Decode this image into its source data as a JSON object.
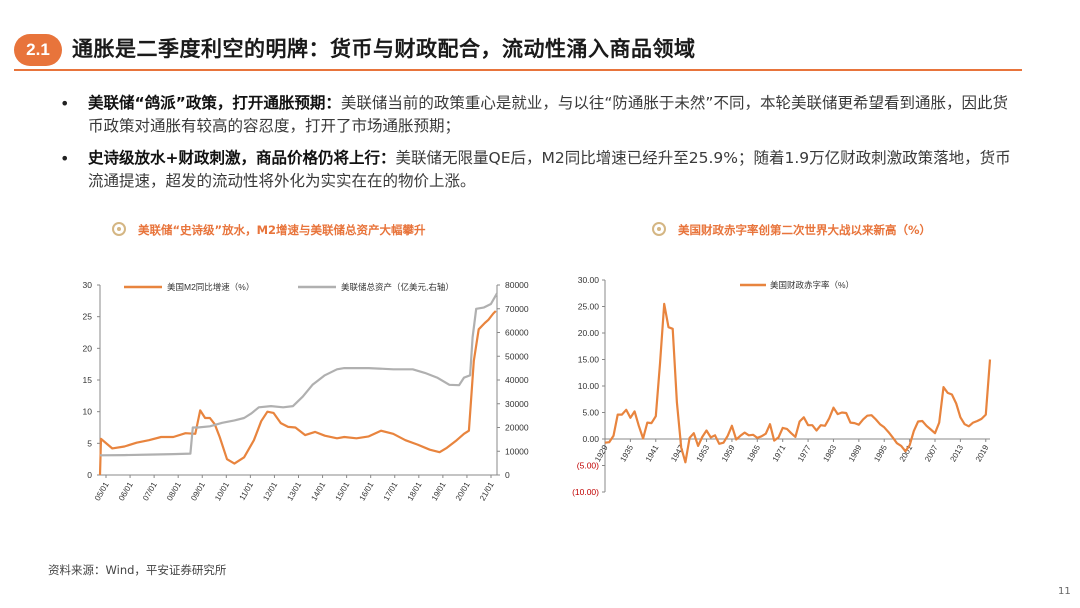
{
  "slide": {
    "section_number": "2.1",
    "title": "通胀是二季度利空的明牌：货币与财政配合，流动性涌入商品领域",
    "bullets": [
      {
        "lead": "美联储“鸽派”政策，打开通胀预期：",
        "text": "美联储当前的政策重心是就业，与以往“防通胀于未然”不同，本轮美联储更希望看到通胀，因此货币政策对通胀有较高的容忍度，打开了市场通胀预期；"
      },
      {
        "lead": "史诗级放水+财政刺激，商品价格仍将上行：",
        "text": "美联储无限量QE后，M2同比增速已经升至25.9%；随着1.9万亿财政刺激政策落地，货币流通提速，超发的流动性将外化为实实在在的物价上涨。"
      }
    ],
    "source": "资料来源：Wind，平安证券研究所",
    "page_number": "11"
  },
  "colors": {
    "accent": "#E8743B",
    "series_orange": "#E8843E",
    "series_gray": "#B0B0B0",
    "ring": "#D4B683"
  },
  "chart_data": [
    {
      "type": "line",
      "title": "美联储“史诗级”放水，M2增速与美联储总资产大幅攀升",
      "x_ticks": [
        "05/01",
        "06/01",
        "07/01",
        "08/01",
        "09/01",
        "10/01",
        "11/01",
        "12/01",
        "13/01",
        "14/01",
        "15/01",
        "16/01",
        "17/01",
        "18/01",
        "19/01",
        "20/01",
        "21/01"
      ],
      "x_range": [
        2005.0,
        2021.25
      ],
      "y_left": {
        "min": 0,
        "max": 30,
        "ticks": [
          "0",
          "5",
          "10",
          "15",
          "20",
          "25",
          "30"
        ]
      },
      "y_right": {
        "min": 0,
        "max": 80000,
        "ticks": [
          "0",
          "10000",
          "20000",
          "30000",
          "40000",
          "50000",
          "60000",
          "70000",
          "80000"
        ]
      },
      "legend_position": "top",
      "series": [
        {
          "name": "美国M2同比增速（%）",
          "axis": "left",
          "points": [
            [
              2005.0,
              0
            ],
            [
              2005.04,
              5.7
            ],
            [
              2005.5,
              4.2
            ],
            [
              2006.0,
              4.5
            ],
            [
              2006.5,
              5.1
            ],
            [
              2007.0,
              5.5
            ],
            [
              2007.5,
              6.0
            ],
            [
              2008.0,
              6.0
            ],
            [
              2008.5,
              6.6
            ],
            [
              2008.9,
              6.5
            ],
            [
              2009.1,
              10.2
            ],
            [
              2009.3,
              9.0
            ],
            [
              2009.5,
              9.0
            ],
            [
              2009.7,
              8.0
            ],
            [
              2009.9,
              6.0
            ],
            [
              2010.2,
              2.5
            ],
            [
              2010.5,
              1.8
            ],
            [
              2010.9,
              2.8
            ],
            [
              2011.3,
              5.5
            ],
            [
              2011.6,
              8.5
            ],
            [
              2011.85,
              10.0
            ],
            [
              2012.1,
              9.8
            ],
            [
              2012.4,
              8.2
            ],
            [
              2012.7,
              7.6
            ],
            [
              2013.0,
              7.5
            ],
            [
              2013.4,
              6.3
            ],
            [
              2013.8,
              6.8
            ],
            [
              2014.2,
              6.2
            ],
            [
              2014.7,
              5.8
            ],
            [
              2015.0,
              6.0
            ],
            [
              2015.5,
              5.8
            ],
            [
              2016.0,
              6.1
            ],
            [
              2016.5,
              7.0
            ],
            [
              2017.0,
              6.5
            ],
            [
              2017.5,
              5.5
            ],
            [
              2018.0,
              4.8
            ],
            [
              2018.5,
              4.0
            ],
            [
              2018.9,
              3.6
            ],
            [
              2019.2,
              4.3
            ],
            [
              2019.6,
              5.5
            ],
            [
              2019.9,
              6.5
            ],
            [
              2020.1,
              7.0
            ],
            [
              2020.3,
              18.0
            ],
            [
              2020.5,
              23.0
            ],
            [
              2020.75,
              24.0
            ],
            [
              2020.9,
              24.5
            ],
            [
              2021.1,
              25.5
            ],
            [
              2021.2,
              25.9
            ]
          ]
        },
        {
          "name": "美联储总资产（亿美元,右轴）",
          "axis": "right",
          "points": [
            [
              2005.0,
              8300
            ],
            [
              2006.0,
              8400
            ],
            [
              2007.0,
              8600
            ],
            [
              2008.0,
              8800
            ],
            [
              2008.7,
              9000
            ],
            [
              2008.8,
              20000
            ],
            [
              2009.0,
              20000
            ],
            [
              2009.5,
              20500
            ],
            [
              2010.0,
              22000
            ],
            [
              2010.5,
              23000
            ],
            [
              2010.9,
              24000
            ],
            [
              2011.2,
              26000
            ],
            [
              2011.5,
              28500
            ],
            [
              2012.0,
              29000
            ],
            [
              2012.5,
              28500
            ],
            [
              2012.9,
              29000
            ],
            [
              2013.3,
              33000
            ],
            [
              2013.7,
              38000
            ],
            [
              2014.2,
              42000
            ],
            [
              2014.7,
              44500
            ],
            [
              2015.0,
              45000
            ],
            [
              2016.0,
              45000
            ],
            [
              2017.0,
              44500
            ],
            [
              2017.8,
              44500
            ],
            [
              2018.3,
              43000
            ],
            [
              2018.8,
              41000
            ],
            [
              2019.3,
              38000
            ],
            [
              2019.7,
              37800
            ],
            [
              2019.9,
              41000
            ],
            [
              2020.15,
              42000
            ],
            [
              2020.25,
              58000
            ],
            [
              2020.4,
              70000
            ],
            [
              2020.7,
              70500
            ],
            [
              2021.0,
              72000
            ],
            [
              2021.25,
              76500
            ]
          ]
        }
      ]
    },
    {
      "type": "line",
      "title": "美国财政赤字率创第二次世界大战以来新高（%）",
      "x_ticks": [
        "1929",
        "1935",
        "1941",
        "1947",
        "1953",
        "1959",
        "1965",
        "1971",
        "1977",
        "1983",
        "1989",
        "1995",
        "2001",
        "2007",
        "2013",
        "2019"
      ],
      "x_range": [
        1929,
        2020
      ],
      "y": {
        "min": -10,
        "max": 30,
        "ticks": [
          "30.00",
          "25.00",
          "20.00",
          "15.00",
          "10.00",
          "5.00",
          "0.00",
          "(5.00)",
          "(10.00)"
        ]
      },
      "legend_position": "top",
      "series": [
        {
          "name": "美国财政赤字率（%）",
          "points": [
            [
              1929,
              -0.7
            ],
            [
              1930,
              -0.6
            ],
            [
              1931,
              0.6
            ],
            [
              1932,
              4.6
            ],
            [
              1933,
              4.6
            ],
            [
              1934,
              5.5
            ],
            [
              1935,
              4.0
            ],
            [
              1936,
              5.2
            ],
            [
              1937,
              2.5
            ],
            [
              1938,
              0.1
            ],
            [
              1939,
              3.1
            ],
            [
              1940,
              3.0
            ],
            [
              1941,
              4.3
            ],
            [
              1942,
              14.2
            ],
            [
              1943,
              25.5
            ],
            [
              1944,
              21.1
            ],
            [
              1945,
              20.8
            ],
            [
              1946,
              6.9
            ],
            [
              1947,
              -1.6
            ],
            [
              1948,
              -4.4
            ],
            [
              1949,
              0.2
            ],
            [
              1950,
              1.1
            ],
            [
              1951,
              -1.3
            ],
            [
              1952,
              0.4
            ],
            [
              1953,
              1.6
            ],
            [
              1954,
              0.3
            ],
            [
              1955,
              0.7
            ],
            [
              1956,
              -0.9
            ],
            [
              1957,
              -0.7
            ],
            [
              1958,
              0.6
            ],
            [
              1959,
              2.5
            ],
            [
              1960,
              -0.1
            ],
            [
              1961,
              0.6
            ],
            [
              1962,
              1.2
            ],
            [
              1963,
              0.7
            ],
            [
              1964,
              0.8
            ],
            [
              1965,
              0.2
            ],
            [
              1966,
              0.5
            ],
            [
              1967,
              1.0
            ],
            [
              1968,
              2.8
            ],
            [
              1969,
              -0.3
            ],
            [
              1970,
              0.3
            ],
            [
              1971,
              2.1
            ],
            [
              1972,
              1.9
            ],
            [
              1973,
              1.1
            ],
            [
              1974,
              0.4
            ],
            [
              1975,
              3.3
            ],
            [
              1976,
              4.1
            ],
            [
              1977,
              2.6
            ],
            [
              1978,
              2.6
            ],
            [
              1979,
              1.6
            ],
            [
              1980,
              2.6
            ],
            [
              1981,
              2.5
            ],
            [
              1982,
              3.9
            ],
            [
              1983,
              5.9
            ],
            [
              1984,
              4.7
            ],
            [
              1985,
              5.0
            ],
            [
              1986,
              4.9
            ],
            [
              1987,
              3.1
            ],
            [
              1988,
              3.0
            ],
            [
              1989,
              2.7
            ],
            [
              1990,
              3.7
            ],
            [
              1991,
              4.4
            ],
            [
              1992,
              4.5
            ],
            [
              1993,
              3.7
            ],
            [
              1994,
              2.8
            ],
            [
              1995,
              2.2
            ],
            [
              1996,
              1.3
            ],
            [
              1997,
              0.3
            ],
            [
              1998,
              -0.8
            ],
            [
              1999,
              -1.3
            ],
            [
              2000,
              -2.3
            ],
            [
              2001,
              -1.2
            ],
            [
              2002,
              1.5
            ],
            [
              2003,
              3.3
            ],
            [
              2004,
              3.4
            ],
            [
              2005,
              2.5
            ],
            [
              2006,
              1.8
            ],
            [
              2007,
              1.1
            ],
            [
              2008,
              3.1
            ],
            [
              2009,
              9.8
            ],
            [
              2010,
              8.7
            ],
            [
              2011,
              8.4
            ],
            [
              2012,
              6.7
            ],
            [
              2013,
              4.1
            ],
            [
              2014,
              2.8
            ],
            [
              2015,
              2.4
            ],
            [
              2016,
              3.1
            ],
            [
              2017,
              3.4
            ],
            [
              2018,
              3.8
            ],
            [
              2019,
              4.6
            ],
            [
              2020,
              15.0
            ]
          ]
        }
      ]
    }
  ]
}
